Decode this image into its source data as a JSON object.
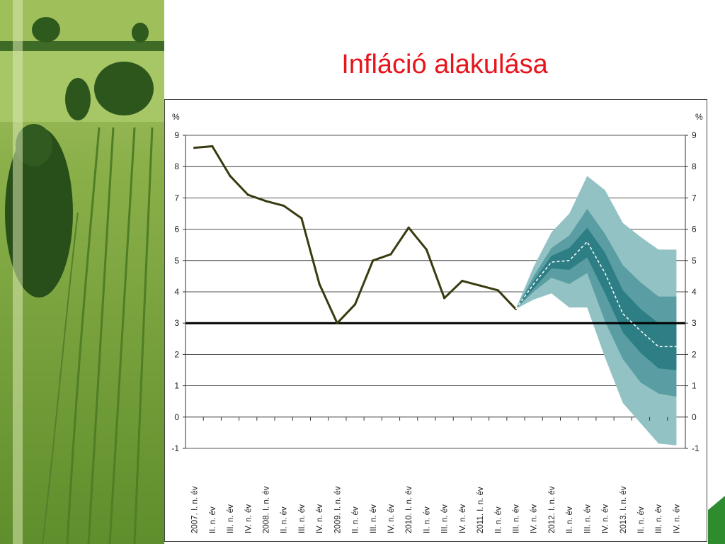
{
  "slide": {
    "title": "Infláció alakulása"
  },
  "colors": {
    "title": "#e8141c",
    "actual_line": "#3a3a10",
    "target_line": "#000000",
    "fan_outer": "#93c2c5",
    "fan_middle": "#5a9ea3",
    "fan_inner": "#2e7f85",
    "median": "#ffffff",
    "grid": "#1a1a1a"
  },
  "chart_data": {
    "type": "line",
    "y_unit_left": "%",
    "y_unit_right": "%",
    "ylim": [
      -1,
      9
    ],
    "yticks": [
      -1,
      0,
      1,
      2,
      3,
      4,
      5,
      6,
      7,
      8,
      9
    ],
    "grid": true,
    "target_value": 3,
    "categories": [
      "2007. I. n. év",
      "II. n. év",
      "III. n. év",
      "IV. n. év",
      "2008. I. n. év",
      "II. n. év",
      "III. n. év",
      "IV. n. év",
      "2009. I. n. év",
      "II. n. év",
      "III. n. év",
      "IV. n. év",
      "2010. I. n. év",
      "II. n. év",
      "III. n. év",
      "IV. n. év",
      "2011. I. n. év",
      "II. n. év",
      "III. n. év",
      "IV. n. év",
      "2012. I. n. év",
      "II. n. év",
      "III. n. év",
      "IV. n. év",
      "2013. I. n. év",
      "II. n. év",
      "III. n. év",
      "IV. n. év"
    ],
    "actual": [
      8.6,
      8.65,
      7.7,
      7.1,
      6.9,
      6.75,
      6.35,
      4.25,
      3.0,
      3.6,
      5.0,
      5.2,
      6.05,
      5.35,
      3.8,
      4.35,
      4.2,
      4.05,
      3.45
    ],
    "forecast": {
      "start_index": 18,
      "median": [
        3.45,
        4.25,
        4.95,
        5.0,
        5.6,
        4.6,
        3.3,
        2.75,
        2.25,
        2.25
      ],
      "bands": [
        {
          "lower": [
            3.45,
            3.75,
            3.95,
            3.5,
            3.5,
            1.9,
            0.45,
            -0.2,
            -0.85,
            -0.9
          ],
          "upper": [
            3.45,
            4.8,
            5.9,
            6.5,
            7.7,
            7.25,
            6.2,
            5.75,
            5.35,
            5.35
          ]
        },
        {
          "lower": [
            3.45,
            4.0,
            4.45,
            4.25,
            4.6,
            3.05,
            1.85,
            1.1,
            0.75,
            0.65
          ],
          "upper": [
            3.45,
            4.5,
            5.4,
            5.8,
            6.65,
            5.85,
            4.85,
            4.3,
            3.85,
            3.85
          ]
        },
        {
          "lower": [
            3.45,
            4.1,
            4.75,
            4.7,
            5.1,
            3.95,
            2.7,
            2.05,
            1.55,
            1.5
          ],
          "upper": [
            3.45,
            4.35,
            5.15,
            5.4,
            6.05,
            5.25,
            4.05,
            3.45,
            3.0,
            3.0
          ]
        }
      ]
    }
  }
}
